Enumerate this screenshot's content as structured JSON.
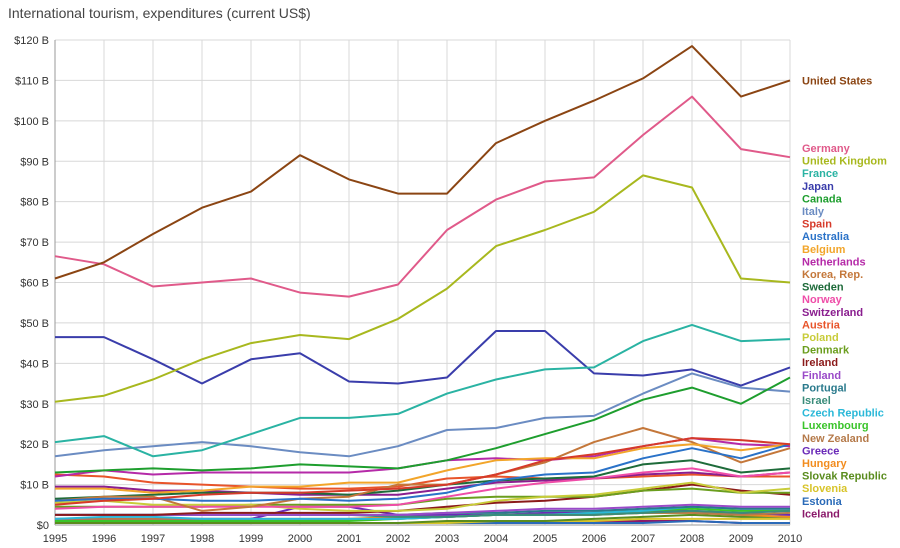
{
  "chart_data": {
    "type": "line",
    "title": "International tourism, expenditures (current US$)",
    "x": [
      1995,
      1996,
      1997,
      1998,
      1999,
      2000,
      2001,
      2002,
      2003,
      2004,
      2005,
      2006,
      2007,
      2008,
      2009,
      2010
    ],
    "ylim": [
      0,
      120
    ],
    "y_ticks": [
      "$0",
      "$10 B",
      "$20 B",
      "$30 B",
      "$40 B",
      "$50 B",
      "$60 B",
      "$70 B",
      "$80 B",
      "$90 B",
      "$100 B",
      "$110 B",
      "$120 B"
    ],
    "x_ticks": [
      "1995",
      "1996",
      "1997",
      "1998",
      "1999",
      "2000",
      "2001",
      "2002",
      "2003",
      "2004",
      "2005",
      "2006",
      "2007",
      "2008",
      "2009",
      "2010"
    ],
    "grid": true,
    "legend_placement": "right",
    "series": [
      {
        "name": "United States",
        "color": "#8b4513",
        "values": [
          61,
          65,
          72,
          78.5,
          82.5,
          91.5,
          85.5,
          82,
          82,
          94.5,
          100,
          105,
          110.5,
          118.5,
          106,
          110
        ]
      },
      {
        "name": "Germany",
        "color": "#e05a8a",
        "values": [
          66.5,
          64.5,
          59,
          60,
          61,
          57.5,
          56.5,
          59.5,
          73,
          80.5,
          85,
          86,
          96.5,
          106,
          93,
          91
        ]
      },
      {
        "name": "United Kingdom",
        "color": "#a8b81e",
        "values": [
          30.5,
          32,
          36,
          41,
          45,
          47,
          46,
          51,
          58.5,
          69,
          73,
          77.5,
          86.5,
          83.5,
          61,
          60
        ]
      },
      {
        "name": "France",
        "color": "#2ab3a3",
        "values": [
          20.5,
          22,
          17,
          18.5,
          22.5,
          26.5,
          26.5,
          27.5,
          32.5,
          36,
          38.5,
          39,
          45.5,
          49.5,
          45.5,
          46
        ]
      },
      {
        "name": "Japan",
        "color": "#3a3dab",
        "values": [
          46.5,
          46.5,
          41,
          35,
          41,
          42.5,
          35.5,
          35,
          36.5,
          48,
          48,
          37.5,
          37,
          38.5,
          34.5,
          39
        ]
      },
      {
        "name": "Canada",
        "color": "#1e9e2e",
        "values": [
          13,
          13.5,
          14,
          13.5,
          14,
          15,
          14.5,
          14,
          16,
          19,
          22.5,
          26,
          31,
          34,
          30,
          36.5
        ]
      },
      {
        "name": "Italy",
        "color": "#6b8cc2",
        "values": [
          17,
          18.5,
          19.5,
          20.5,
          19.5,
          18,
          17,
          19.5,
          23.5,
          24,
          26.5,
          27,
          32.5,
          37.5,
          34,
          33
        ]
      },
      {
        "name": "Spain",
        "color": "#d63a2a",
        "values": [
          5,
          6,
          6.5,
          7.5,
          8,
          8,
          8.5,
          9,
          10,
          12.5,
          16,
          17.5,
          19.5,
          21.5,
          21,
          20
        ]
      },
      {
        "name": "Australia",
        "color": "#2a72c8",
        "values": [
          6,
          6.5,
          6.5,
          6,
          6,
          6.5,
          6,
          6.5,
          8,
          11,
          12.5,
          13,
          16.5,
          19,
          16.5,
          20
        ]
      },
      {
        "name": "Belgium",
        "color": "#f2a52a",
        "values": [
          9,
          9,
          8,
          8.5,
          9.5,
          9.5,
          10.5,
          10.5,
          13.5,
          16,
          16.5,
          16.5,
          19,
          20,
          18.5,
          20
        ]
      },
      {
        "name": "Netherlands",
        "color": "#b52aa8",
        "values": [
          12,
          13.5,
          12.5,
          13,
          13,
          13,
          13,
          14,
          16,
          16.5,
          16,
          17,
          19.5,
          21.5,
          20,
          19.5
        ]
      },
      {
        "name": "Korea, Rep.",
        "color": "#c4773a",
        "values": [
          6,
          7,
          7,
          3.5,
          4.5,
          6.5,
          7,
          10,
          10,
          12.5,
          15.5,
          20.5,
          24,
          20.5,
          15.5,
          19
        ]
      },
      {
        "name": "Sweden",
        "color": "#1e6b3a",
        "values": [
          6.5,
          7,
          7.5,
          8,
          8,
          8,
          7.5,
          8.5,
          10,
          11,
          11.5,
          12,
          15,
          16,
          13,
          14
        ]
      },
      {
        "name": "Norway",
        "color": "#ef4da8",
        "values": [
          4,
          4.5,
          4.5,
          4.5,
          4.5,
          4.5,
          4.5,
          5,
          7,
          9,
          10.5,
          11.5,
          13,
          14,
          12,
          13
        ]
      },
      {
        "name": "Switzerland",
        "color": "#8a1e8f",
        "values": [
          9.5,
          9.5,
          8.5,
          8.5,
          8,
          7.5,
          7.5,
          7.5,
          9,
          10.5,
          11,
          11.5,
          12.5,
          13,
          12,
          13
        ]
      },
      {
        "name": "Austria",
        "color": "#e8542a",
        "values": [
          12.5,
          12,
          10.5,
          10,
          9.5,
          9,
          9,
          9.5,
          11.5,
          12,
          11.5,
          11.5,
          12,
          12.5,
          12,
          12
        ]
      },
      {
        "name": "Poland",
        "color": "#c8cc3a",
        "values": [
          5.5,
          6,
          5,
          5,
          5,
          4,
          3.5,
          3.5,
          4,
          6,
          7,
          7.5,
          9,
          10.5,
          8,
          9
        ]
      },
      {
        "name": "Denmark",
        "color": "#6b9e1e",
        "values": [
          4.5,
          4.5,
          4.5,
          4.5,
          5,
          5,
          5,
          5,
          6.5,
          7,
          7,
          7,
          8.5,
          9,
          8,
          8
        ]
      },
      {
        "name": "Ireland",
        "color": "#8b1a1a",
        "values": [
          2.5,
          2.5,
          2.5,
          3,
          3,
          3,
          3,
          3.5,
          4.5,
          5.5,
          6,
          7,
          8.5,
          10,
          8.5,
          7.5
        ]
      },
      {
        "name": "Finland",
        "color": "#9a4ac8",
        "values": [
          2.5,
          2.5,
          2.5,
          2.5,
          2.5,
          2.5,
          2.5,
          2.5,
          3,
          3.5,
          4,
          4,
          4.5,
          5,
          4.5,
          4.5
        ]
      },
      {
        "name": "Portugal",
        "color": "#2a7a8c",
        "values": [
          2.5,
          2.5,
          2.5,
          2.5,
          2.5,
          2.5,
          2.5,
          2.5,
          3,
          3,
          3.5,
          3.5,
          4,
          4.5,
          4,
          4
        ]
      },
      {
        "name": "Israel",
        "color": "#3a8c7a",
        "values": [
          2.5,
          2.5,
          2.5,
          2.5,
          2.5,
          2.5,
          2.5,
          2,
          2,
          2.5,
          2.5,
          2.5,
          3,
          3.5,
          3,
          3.5
        ]
      },
      {
        "name": "Czech Republic",
        "color": "#2ab8d8",
        "values": [
          1.5,
          2,
          2,
          1.5,
          1.5,
          1.5,
          1.5,
          1.5,
          2,
          2.5,
          2.5,
          3,
          3.5,
          4.5,
          4,
          4
        ]
      },
      {
        "name": "Luxembourg",
        "color": "#3ac42a",
        "values": [
          1,
          1,
          1,
          1,
          1,
          1,
          1,
          1.5,
          2,
          2.5,
          2.5,
          3,
          3.5,
          4,
          3.5,
          3.5
        ]
      },
      {
        "name": "New Zealand",
        "color": "#b57a4a",
        "values": [
          1.5,
          1.5,
          1.5,
          1.5,
          1.5,
          1.5,
          1.5,
          1.5,
          2,
          2.5,
          2.5,
          2.5,
          3,
          3,
          2.5,
          3
        ]
      },
      {
        "name": "Greece",
        "color": "#6a2ab8",
        "values": [
          1.5,
          1.5,
          1.5,
          1.5,
          1.5,
          4.5,
          4.5,
          2.5,
          2.5,
          2.5,
          3,
          3,
          3.5,
          3.5,
          3,
          2.5
        ]
      },
      {
        "name": "Hungary",
        "color": "#f28c1e",
        "values": [
          1,
          1,
          1,
          1,
          1,
          1,
          1.5,
          2,
          2,
          2.5,
          2.5,
          2.5,
          3,
          3,
          2.5,
          2
        ]
      },
      {
        "name": "Slovak Republic",
        "color": "#5a8c1e",
        "values": [
          0.5,
          0.5,
          0.5,
          0.5,
          0.5,
          0.5,
          0.5,
          0.5,
          1,
          1,
          1,
          1.5,
          2,
          2.5,
          2,
          2
        ]
      },
      {
        "name": "Slovenia",
        "color": "#d8c42a",
        "values": [
          0.5,
          0.5,
          0.5,
          0.5,
          0.5,
          0.5,
          0.5,
          0.5,
          0.5,
          1,
          1,
          1,
          1.5,
          1.5,
          1.5,
          1.5
        ]
      },
      {
        "name": "Estonia",
        "color": "#2a6ab8",
        "values": [
          0.5,
          0.5,
          0.5,
          0.5,
          0.5,
          0.5,
          0.5,
          0.5,
          0.5,
          0.5,
          0.5,
          0.5,
          0.5,
          1,
          0.5,
          0.5
        ]
      },
      {
        "name": "Iceland",
        "color": "#8b1a6b",
        "values": [
          0.5,
          0.5,
          0.5,
          0.5,
          0.5,
          0.5,
          0.5,
          0.5,
          0.5,
          1,
          1,
          1,
          1,
          1,
          0.5,
          0.5
        ]
      }
    ]
  }
}
